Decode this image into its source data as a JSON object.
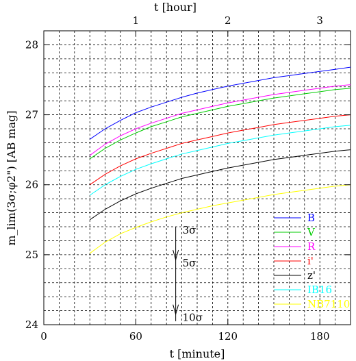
{
  "chart_data": {
    "type": "line",
    "xlabel": "t [minute]",
    "ylabel": "m_lim(3σ;φ2\") [AB mag]",
    "top_xlabel": "t [hour]",
    "xlim": [
      0,
      200
    ],
    "ylim": [
      24,
      28.2
    ],
    "x_ticks": [
      0,
      60,
      120,
      180
    ],
    "y_ticks": [
      24,
      25,
      26,
      27,
      28
    ],
    "top_x_ticks_hours": [
      1,
      2,
      3
    ],
    "grid": true,
    "legend_position": "lower-right",
    "x": [
      30,
      40,
      50,
      60,
      70,
      80,
      90,
      100,
      110,
      120,
      130,
      140,
      150,
      160,
      170,
      180,
      190,
      200
    ],
    "series": [
      {
        "name": "B",
        "color": "#0000ff",
        "values": [
          26.65,
          26.8,
          26.92,
          27.03,
          27.11,
          27.18,
          27.25,
          27.31,
          27.36,
          27.41,
          27.45,
          27.49,
          27.53,
          27.56,
          27.59,
          27.62,
          27.65,
          27.68
        ]
      },
      {
        "name": "V",
        "color": "#00cc00",
        "values": [
          26.37,
          26.52,
          26.64,
          26.74,
          26.83,
          26.9,
          26.97,
          27.02,
          27.07,
          27.12,
          27.16,
          27.2,
          27.24,
          27.27,
          27.3,
          27.33,
          27.36,
          27.38
        ]
      },
      {
        "name": "R",
        "color": "#ff00ff",
        "values": [
          26.42,
          26.58,
          26.7,
          26.8,
          26.88,
          26.95,
          27.02,
          27.07,
          27.12,
          27.17,
          27.21,
          27.25,
          27.29,
          27.32,
          27.35,
          27.38,
          27.41,
          27.43
        ]
      },
      {
        "name": "i'",
        "color": "#ff0000",
        "values": [
          26.0,
          26.15,
          26.27,
          26.37,
          26.45,
          26.52,
          26.59,
          26.64,
          26.69,
          26.74,
          26.78,
          26.82,
          26.86,
          26.89,
          26.92,
          26.95,
          26.98,
          27.0
        ]
      },
      {
        "name": "z'",
        "color": "#000000",
        "values": [
          25.5,
          25.65,
          25.77,
          25.87,
          25.95,
          26.02,
          26.09,
          26.14,
          26.19,
          26.24,
          26.28,
          26.32,
          26.36,
          26.39,
          26.42,
          26.45,
          26.48,
          26.5
        ]
      },
      {
        "name": "IB16",
        "color": "#00ffff",
        "values": [
          25.85,
          26.0,
          26.12,
          26.22,
          26.3,
          26.37,
          26.44,
          26.49,
          26.54,
          26.59,
          26.63,
          26.67,
          26.71,
          26.74,
          26.77,
          26.8,
          26.83,
          26.85
        ]
      },
      {
        "name": "NB7110",
        "color": "#ffff00",
        "values": [
          25.02,
          25.18,
          25.3,
          25.39,
          25.47,
          25.54,
          25.6,
          25.65,
          25.7,
          25.74,
          25.78,
          25.82,
          25.86,
          25.89,
          25.92,
          25.95,
          25.98,
          26.0
        ]
      }
    ],
    "annotations": {
      "arrow_x": 86,
      "arrow_y_top": 25.4,
      "arrow_y_bottom": 24.05,
      "labels": [
        {
          "text": "3σ",
          "y": 25.4
        },
        {
          "text": "5σ",
          "y": 24.93
        },
        {
          "text": "10σ",
          "y": 24.15
        }
      ],
      "arrow_heads_y": [
        24.93,
        24.15
      ]
    }
  }
}
